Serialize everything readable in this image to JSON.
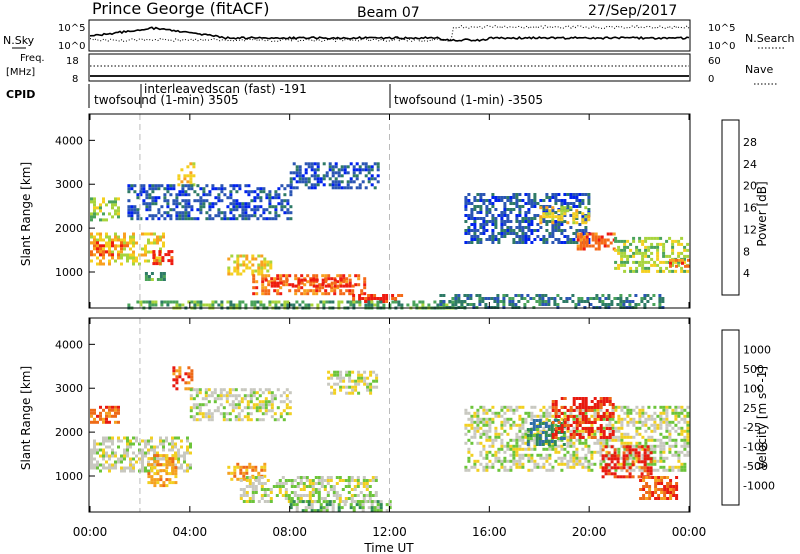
{
  "header": {
    "title": "Prince George (fitACF)",
    "beam": "Beam 07",
    "date": "27/Sep/2017"
  },
  "top_panels": {
    "nsky_label": "N.Sky",
    "nsearch_label": "N.Search",
    "noise_left_ticks": [
      "10^5",
      "10^0"
    ],
    "noise_right_ticks": [
      "10^5",
      "10^0"
    ],
    "freq_label": "Freq.",
    "freq_unit": "[MHz]",
    "freq_ticks": [
      "18",
      "8"
    ],
    "nave_label": "Nave",
    "nave_ticks": [
      "60",
      "0"
    ],
    "cpid_label": "CPID",
    "cpid_segments": [
      {
        "name": "twofsound (1-min) 3505",
        "start_hour": 0
      },
      {
        "name": "interleavedscan (fast) -191",
        "start_hour": 2.0
      },
      {
        "name": "twofsound (1-min) -3505",
        "start_hour": 12.0
      }
    ]
  },
  "axes": {
    "x_label": "Time UT",
    "x_ticks": [
      "00:00",
      "04:00",
      "08:00",
      "12:00",
      "16:00",
      "20:00",
      "00:00"
    ],
    "y_label": "Slant Range [km]",
    "y_ticks": [
      "1000",
      "2000",
      "3000",
      "4000"
    ]
  },
  "power_colorbar": {
    "label": "Power [dB]",
    "ticks": [
      "4",
      "8",
      "12",
      "16",
      "20",
      "24",
      "28"
    ],
    "colors": [
      "#0022ee",
      "#2a55b4",
      "#2e7a66",
      "#4aa35a",
      "#a8d43c",
      "#f4d020",
      "#f9a020",
      "#f46a18",
      "#ee1a10"
    ]
  },
  "velocity_colorbar": {
    "label": "Velocity [m s^-1]",
    "ticks": [
      "1000",
      "500",
      "100",
      "25",
      "-25",
      "-100",
      "-500",
      "-1000"
    ],
    "colors": [
      "#2233bb",
      "#2e6ea8",
      "#2f8a55",
      "#6cc43a",
      "#c8c8c0",
      "#f2d020",
      "#f5a020",
      "#ee6a18",
      "#e81a10"
    ]
  },
  "chart_data": [
    {
      "type": "heatmap",
      "name": "Power",
      "x_unit": "hours UT",
      "y_unit": "km",
      "xlim": [
        0,
        24
      ],
      "ylim": [
        180,
        4600
      ],
      "blobs": [
        {
          "t0": 0.0,
          "t1": 3.0,
          "r0": 1200,
          "r1": 1900,
          "level": 5
        },
        {
          "t0": 0.0,
          "t1": 1.5,
          "r0": 1400,
          "r1": 1700,
          "level": 7
        },
        {
          "t0": 0.0,
          "t1": 1.2,
          "r0": 2200,
          "r1": 2700,
          "level": 4
        },
        {
          "t0": 2.5,
          "t1": 3.3,
          "r0": 1200,
          "r1": 1500,
          "level": 8
        },
        {
          "t0": 2.2,
          "t1": 3.0,
          "r0": 800,
          "r1": 1000,
          "level": 3
        },
        {
          "t0": 3.5,
          "t1": 4.2,
          "r0": 3000,
          "r1": 3500,
          "level": 5
        },
        {
          "t0": 1.5,
          "t1": 8.0,
          "r0": 2200,
          "r1": 3000,
          "level": 1
        },
        {
          "t0": 5.5,
          "t1": 7.3,
          "r0": 950,
          "r1": 1400,
          "level": 5
        },
        {
          "t0": 6.5,
          "t1": 11.0,
          "r0": 500,
          "r1": 950,
          "level": 7
        },
        {
          "t0": 7.0,
          "t1": 10.5,
          "r0": 650,
          "r1": 850,
          "level": 8
        },
        {
          "t0": 10.5,
          "t1": 12.5,
          "r0": 300,
          "r1": 500,
          "level": 8
        },
        {
          "t0": 1.5,
          "t1": 15.0,
          "r0": 200,
          "r1": 350,
          "level": 3
        },
        {
          "t0": 8.0,
          "t1": 11.5,
          "r0": 2900,
          "r1": 3500,
          "level": 1
        },
        {
          "t0": 15.0,
          "t1": 20.0,
          "r0": 1700,
          "r1": 2800,
          "level": 1
        },
        {
          "t0": 18.0,
          "t1": 20.0,
          "r0": 2100,
          "r1": 2500,
          "level": 5
        },
        {
          "t0": 19.5,
          "t1": 21.0,
          "r0": 1500,
          "r1": 1900,
          "level": 7
        },
        {
          "t0": 21.0,
          "t1": 24.0,
          "r0": 1000,
          "r1": 1800,
          "level": 4
        },
        {
          "t0": 23.2,
          "t1": 24.0,
          "r0": 1100,
          "r1": 1300,
          "level": 7
        },
        {
          "t0": 14.0,
          "t1": 23.0,
          "r0": 200,
          "r1": 500,
          "level": 2
        }
      ]
    },
    {
      "type": "heatmap",
      "name": "Velocity",
      "x_unit": "hours UT",
      "y_unit": "km",
      "xlim": [
        0,
        24
      ],
      "ylim": [
        180,
        4600
      ],
      "blobs": [
        {
          "t0": 0.0,
          "t1": 4.0,
          "r0": 1100,
          "r1": 1900,
          "level": 4
        },
        {
          "t0": 0.0,
          "t1": 1.2,
          "r0": 2200,
          "r1": 2600,
          "level": 7
        },
        {
          "t0": 2.3,
          "t1": 3.5,
          "r0": 800,
          "r1": 1500,
          "level": 6
        },
        {
          "t0": 3.3,
          "t1": 4.1,
          "r0": 3000,
          "r1": 3500,
          "level": 7
        },
        {
          "t0": 4.0,
          "t1": 8.0,
          "r0": 2300,
          "r1": 3000,
          "level": 4
        },
        {
          "t0": 5.5,
          "t1": 7.0,
          "r0": 900,
          "r1": 1300,
          "level": 6
        },
        {
          "t0": 6.0,
          "t1": 11.5,
          "r0": 450,
          "r1": 1000,
          "level": 4
        },
        {
          "t0": 8.0,
          "t1": 12.0,
          "r0": 200,
          "r1": 450,
          "level": 3
        },
        {
          "t0": 9.5,
          "t1": 11.5,
          "r0": 2900,
          "r1": 3400,
          "level": 4
        },
        {
          "t0": 15.0,
          "t1": 24.0,
          "r0": 1100,
          "r1": 2600,
          "level": 4
        },
        {
          "t0": 17.5,
          "t1": 19.0,
          "r0": 1700,
          "r1": 2300,
          "level": 2
        },
        {
          "t0": 18.5,
          "t1": 21.0,
          "r0": 1900,
          "r1": 2800,
          "level": 8
        },
        {
          "t0": 20.5,
          "t1": 22.5,
          "r0": 1000,
          "r1": 1700,
          "level": 8
        },
        {
          "t0": 22.0,
          "t1": 23.5,
          "r0": 500,
          "r1": 1000,
          "level": 7
        }
      ]
    }
  ]
}
